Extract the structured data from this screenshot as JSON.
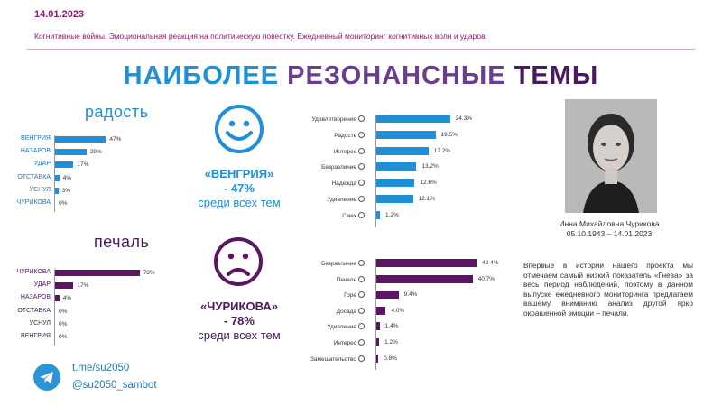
{
  "header": {
    "date": "14.01.2023",
    "subtitle": "Когнитивные войны. Эмоциональная реакция на политическую повестку. Ежедневный мониторинг когнитивных волн и ударов.",
    "title_part1": "НАИБОЛЕЕ ",
    "title_part2": "РЕЗОНАНСНЫЕ ",
    "title_part3": "ТЕМЫ"
  },
  "colors": {
    "blue": "#1f8fd6",
    "purple": "#5c1563",
    "accent": "#8e1a6e"
  },
  "joy_section": {
    "title": "радость",
    "face_icon": "happy-face-icon",
    "highlight_topic": "«ВЕНГРИЯ»",
    "highlight_value": "- 47%",
    "highlight_note": "среди всех тем"
  },
  "sad_section": {
    "title": "печаль",
    "face_icon": "sad-face-icon",
    "highlight_topic": "«ЧУРИКОВА»",
    "highlight_value": "- 78%",
    "highlight_note": "среди всех тем"
  },
  "person": {
    "caption_name": "Инна Михайловна Чурикова",
    "caption_dates": "05.10.1943 – 14.01.2023"
  },
  "paragraph": "Впервые в истории нашего проекта мы отмечаем самый низкий показатель «Гнева» за весь период наблюдений, поэтому в данном выпуске ежедневного мониторинга предлагаем вашему вниманию анализ другой ярко окрашенной эмоции – печали.",
  "footer": {
    "telegram_icon": "telegram-icon",
    "link1": "t.me/su2050",
    "link2": "@su2050_sambot"
  },
  "chart_data": [
    {
      "type": "bar",
      "title": "радость",
      "categories": [
        "ВЕНГРИЯ",
        "НАЗАРОВ",
        "УДАР",
        "ОТСТАВКА",
        "УСНУЛ",
        "ЧУРИКОВА"
      ],
      "values": [
        47,
        29,
        17,
        4,
        3,
        0
      ],
      "value_labels": [
        "47%",
        "29%",
        "17%",
        "4%",
        "3%",
        "0%"
      ],
      "color": "#1f8fd6",
      "xlim": [
        0,
        100
      ]
    },
    {
      "type": "bar",
      "title": "печаль",
      "categories": [
        "ЧУРИКОВА",
        "УДАР",
        "НАЗАРОВ",
        "ОТСТАВКА",
        "УСНУЛ",
        "ВЕНГРИЯ"
      ],
      "values": [
        78,
        17,
        4,
        0,
        0,
        0
      ],
      "value_labels": [
        "78%",
        "17%",
        "4%",
        "0%",
        "0%",
        "0%"
      ],
      "color": "#5c1563",
      "xlim": [
        0,
        100
      ]
    },
    {
      "type": "bar",
      "categories": [
        "Удовлетворение",
        "Радость",
        "Интерес",
        "Безразличие",
        "Надежда",
        "Удивление",
        "Смех"
      ],
      "values": [
        24.3,
        19.5,
        17.2,
        13.2,
        12.6,
        12.1,
        1.2
      ],
      "value_labels": [
        "24.3%",
        "19.5%",
        "17.2%",
        "13.2%",
        "12.6%",
        "12.1%",
        "1.2%"
      ],
      "color": "#1f8fd6",
      "xlim": [
        0,
        25
      ]
    },
    {
      "type": "bar",
      "categories": [
        "Безразличие",
        "Печаль",
        "Горе",
        "Досада",
        "Удивление",
        "Интерес",
        "Замешательство"
      ],
      "values": [
        42.4,
        40.7,
        9.4,
        4.0,
        1.4,
        1.2,
        0.8
      ],
      "value_labels": [
        "42.4%",
        "40.7%",
        "9.4%",
        "4.0%",
        "1.4%",
        "1.2%",
        "0.8%"
      ],
      "color": "#5c1563",
      "xlim": [
        0,
        42
      ]
    }
  ]
}
